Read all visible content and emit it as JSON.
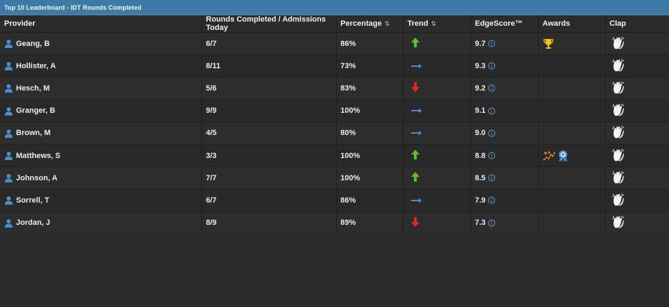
{
  "panel": {
    "title": "Top 10 Leaderboard - IDT Rounds Completed"
  },
  "columns": {
    "provider": "Provider",
    "rounds": "Rounds Completed / Admissions Today",
    "percentage": "Percentage",
    "trend": "Trend",
    "edgescore": "EdgeScore™",
    "awards": "Awards",
    "clap": "Clap"
  },
  "sort_icon": "⇅",
  "colors": {
    "header_bar": "#3d7aa6",
    "up": "#5cc12e",
    "down": "#e02a1f",
    "flat": "#4a8fc9",
    "info": "#4a8fc9",
    "trophy": "#f2c314",
    "award": "#f28c1a"
  },
  "rows": [
    {
      "provider": "Geang, B",
      "rounds": "6/7",
      "percentage": "86%",
      "trend": "up",
      "edgescore": "9.7",
      "awards": [
        "trophy-icon"
      ]
    },
    {
      "provider": "Hollister, A",
      "rounds": "8/11",
      "percentage": "73%",
      "trend": "flat",
      "edgescore": "9.3",
      "awards": []
    },
    {
      "provider": "Hesch, M",
      "rounds": "5/6",
      "percentage": "83%",
      "trend": "down",
      "edgescore": "9.2",
      "awards": []
    },
    {
      "provider": "Granger, B",
      "rounds": "9/9",
      "percentage": "100%",
      "trend": "flat",
      "edgescore": "9.1",
      "awards": []
    },
    {
      "provider": "Brown, M",
      "rounds": "4/5",
      "percentage": "80%",
      "trend": "flat",
      "edgescore": "9.0",
      "awards": []
    },
    {
      "provider": "Matthews, S",
      "rounds": "3/3",
      "percentage": "100%",
      "trend": "up",
      "edgescore": "8.8",
      "awards": [
        "streak-icon",
        "medal-icon"
      ]
    },
    {
      "provider": "Johnson, A",
      "rounds": "7/7",
      "percentage": "100%",
      "trend": "up",
      "edgescore": "8.5",
      "awards": []
    },
    {
      "provider": "Sorrell, T",
      "rounds": "6/7",
      "percentage": "86%",
      "trend": "flat",
      "edgescore": "7.9",
      "awards": []
    },
    {
      "provider": "Jordan, J",
      "rounds": "8/9",
      "percentage": "89%",
      "trend": "down",
      "edgescore": "7.3",
      "awards": []
    }
  ]
}
